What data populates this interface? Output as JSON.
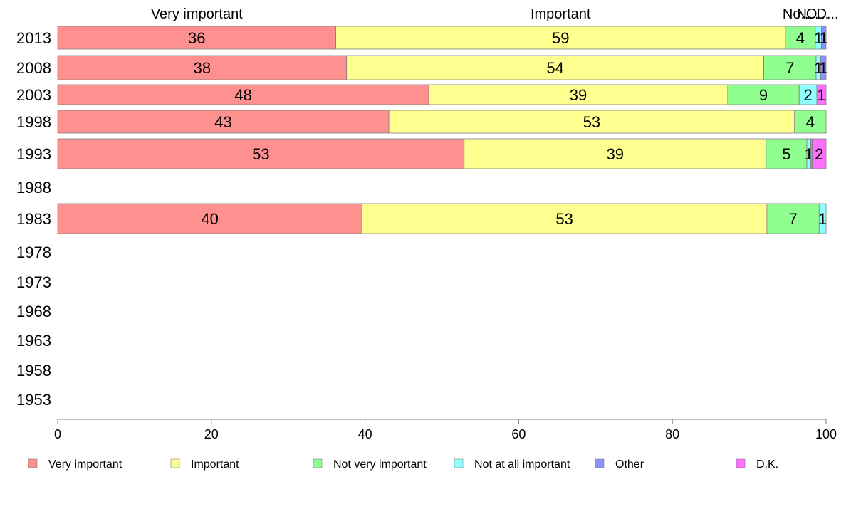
{
  "chart_data": {
    "type": "bar",
    "orientation": "horizontal",
    "stacked": true,
    "column_headers": [
      "Very important",
      "Important",
      "No...",
      "N...",
      "O...",
      "D..."
    ],
    "categories": [
      "2013",
      "2008",
      "2003",
      "1998",
      "1993",
      "1988",
      "1983",
      "1978",
      "1973",
      "1968",
      "1963",
      "1958",
      "1953"
    ],
    "series": [
      {
        "name": "Very important",
        "color": "#ff9090",
        "values": [
          36.2,
          37.6,
          48.3,
          43.1,
          52.9,
          null,
          39.6,
          null,
          null,
          null,
          null,
          null,
          null
        ],
        "labels": [
          "36",
          "38",
          "48",
          "43",
          "53",
          "",
          "40",
          "",
          "",
          "",
          "",
          "",
          ""
        ]
      },
      {
        "name": "Important",
        "color": "#ffff90",
        "values": [
          58.5,
          54.3,
          38.9,
          52.8,
          39.3,
          null,
          52.7,
          null,
          null,
          null,
          null,
          null,
          null
        ],
        "labels": [
          "59",
          "54",
          "39",
          "53",
          "39",
          "",
          "53",
          "",
          "",
          "",
          "",
          "",
          ""
        ]
      },
      {
        "name": "Not very important",
        "color": "#90ff90",
        "values": [
          3.9,
          6.8,
          9.3,
          4.1,
          5.3,
          null,
          6.8,
          null,
          null,
          null,
          null,
          null,
          null
        ],
        "labels": [
          "4",
          "7",
          "9",
          "4",
          "5",
          "",
          "7",
          "",
          "",
          "",
          "",
          "",
          ""
        ]
      },
      {
        "name": "Not at all important",
        "color": "#90ffff",
        "values": [
          0.8,
          0.6,
          2.3,
          0.0,
          0.5,
          null,
          0.9,
          null,
          null,
          null,
          null,
          null,
          null
        ],
        "labels": [
          "1",
          "1",
          "2",
          "",
          "1",
          "",
          "1",
          "",
          "",
          "",
          "",
          "",
          ""
        ]
      },
      {
        "name": "Other",
        "color": "#9090ff",
        "values": [
          0.6,
          0.7,
          0.0,
          0.0,
          0.2,
          null,
          0.0,
          null,
          null,
          null,
          null,
          null,
          null
        ],
        "labels": [
          "1",
          "1",
          "",
          "",
          "",
          "",
          "",
          "",
          "",
          "",
          "",
          "",
          ""
        ]
      },
      {
        "name": "D.K.",
        "color": "#ff70ff",
        "values": [
          0.0,
          0.0,
          1.2,
          0.0,
          1.8,
          null,
          0.0,
          null,
          null,
          null,
          null,
          null,
          null
        ],
        "labels": [
          "",
          "",
          "1",
          "",
          "2",
          "",
          "",
          "",
          "",
          "",
          "",
          "",
          ""
        ]
      }
    ],
    "xlim": [
      0,
      100
    ],
    "xticks": [
      "0",
      "20",
      "40",
      "60",
      "80",
      "100"
    ],
    "legend_position": "bottom"
  }
}
